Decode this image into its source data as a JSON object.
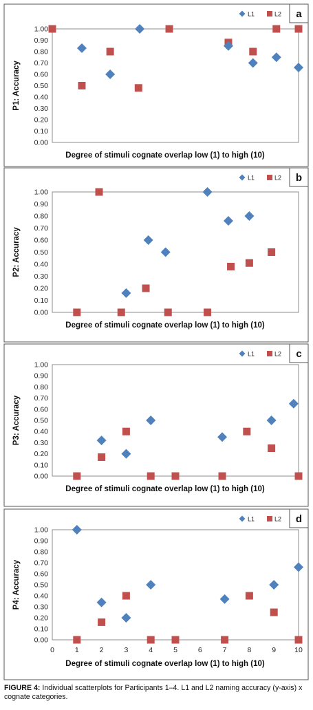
{
  "caption": {
    "label": "FIGURE 4:",
    "text": "Individual scatterplots for Participants 1–4. L1 and L2 naming accuracy (y-axis) x cognate categories."
  },
  "colors": {
    "L1": "#4f81bd",
    "L2": "#c0504d"
  },
  "chart_data": [
    {
      "type": "scatter",
      "panel": "a",
      "ylabel": "P1: Accuracy",
      "xlabel": "Degree of stimuli cognate overlap low (1) to high (10)",
      "xlim": [
        0,
        10
      ],
      "ylim": [
        0,
        1
      ],
      "yticks": [
        "0.00",
        "0.10",
        "0.20",
        "0.30",
        "0.40",
        "0.50",
        "0.60",
        "0.70",
        "0.80",
        "0.90",
        "1.00"
      ],
      "xticks": [],
      "legend": [
        "L1",
        "L2"
      ],
      "legend_position": "top-right",
      "series": [
        {
          "name": "L1",
          "marker": "diamond",
          "points": [
            [
              1.2,
              0.83
            ],
            [
              2.35,
              0.6
            ],
            [
              3.55,
              1.0
            ],
            [
              7.15,
              0.85
            ],
            [
              8.15,
              0.7
            ],
            [
              9.1,
              0.75
            ],
            [
              10.0,
              0.66
            ]
          ]
        },
        {
          "name": "L2",
          "marker": "square",
          "points": [
            [
              0,
              1.0
            ],
            [
              1.2,
              0.5
            ],
            [
              2.35,
              0.8
            ],
            [
              3.5,
              0.48
            ],
            [
              4.75,
              1.0
            ],
            [
              7.15,
              0.88
            ],
            [
              8.15,
              0.8
            ],
            [
              9.1,
              1.0
            ],
            [
              10.0,
              1.0
            ]
          ]
        }
      ]
    },
    {
      "type": "scatter",
      "panel": "b",
      "ylabel": "P2: Accuracy",
      "xlabel": "Degree of stimuli cognate overlap low (1) to high (10)",
      "xlim": [
        0,
        10
      ],
      "ylim": [
        0,
        1
      ],
      "yticks": [
        "0.00",
        "0.10",
        "0.20",
        "0.30",
        "0.40",
        "0.50",
        "0.60",
        "0.70",
        "0.80",
        "0.90",
        "1.00"
      ],
      "xticks": [],
      "legend": [
        "L1",
        "L2"
      ],
      "legend_position": "top-right",
      "series": [
        {
          "name": "L1",
          "marker": "diamond",
          "points": [
            [
              3.0,
              0.16
            ],
            [
              3.9,
              0.6
            ],
            [
              4.6,
              0.5
            ],
            [
              6.3,
              1.0
            ],
            [
              7.15,
              0.76
            ],
            [
              8.0,
              0.8
            ]
          ]
        },
        {
          "name": "L2",
          "marker": "square",
          "points": [
            [
              1.0,
              0.0
            ],
            [
              1.9,
              1.0
            ],
            [
              2.8,
              0.0
            ],
            [
              3.8,
              0.2
            ],
            [
              4.7,
              0.0
            ],
            [
              6.3,
              0.0
            ],
            [
              7.25,
              0.38
            ],
            [
              8.0,
              0.41
            ],
            [
              8.9,
              0.5
            ]
          ]
        }
      ]
    },
    {
      "type": "scatter",
      "panel": "c",
      "ylabel": "P3: Accuracy",
      "xlabel": "Degree of stimuli cognate overlap low (1) to high (10)",
      "xlim": [
        0,
        10
      ],
      "ylim": [
        0,
        1
      ],
      "yticks": [
        "0.00",
        "0.10",
        "0.20",
        "0.30",
        "0.40",
        "0.50",
        "0.60",
        "0.70",
        "0.80",
        "0.90",
        "1.00"
      ],
      "xticks": [],
      "legend": [
        "L1",
        "L2"
      ],
      "legend_position": "top-right",
      "series": [
        {
          "name": "L1",
          "marker": "diamond",
          "points": [
            [
              2.0,
              0.32
            ],
            [
              3.0,
              0.2
            ],
            [
              4.0,
              0.5
            ],
            [
              6.9,
              0.35
            ],
            [
              8.9,
              0.5
            ],
            [
              9.8,
              0.65
            ]
          ]
        },
        {
          "name": "L2",
          "marker": "square",
          "points": [
            [
              1.0,
              0.0
            ],
            [
              2.0,
              0.17
            ],
            [
              3.0,
              0.4
            ],
            [
              4.0,
              0.0
            ],
            [
              5.0,
              0.0
            ],
            [
              6.9,
              0.0
            ],
            [
              7.9,
              0.4
            ],
            [
              8.9,
              0.25
            ],
            [
              10.0,
              0.0
            ]
          ]
        }
      ]
    },
    {
      "type": "scatter",
      "panel": "d",
      "ylabel": "P4: Accuracy",
      "xlabel": "Degree of stimuli cognate overlap low (1) to high (10)",
      "xlim": [
        0,
        10
      ],
      "ylim": [
        0,
        1
      ],
      "yticks": [
        "0.00",
        "0.10",
        "0.20",
        "0.30",
        "0.40",
        "0.50",
        "0.60",
        "0.70",
        "0.80",
        "0.90",
        "1.00"
      ],
      "xticks": [
        "0",
        "1",
        "2",
        "3",
        "4",
        "5",
        "6",
        "7",
        "8",
        "9",
        "10"
      ],
      "legend": [
        "L1",
        "L2"
      ],
      "legend_position": "top-right",
      "series": [
        {
          "name": "L1",
          "marker": "diamond",
          "points": [
            [
              1,
              1.0
            ],
            [
              2,
              0.34
            ],
            [
              3,
              0.2
            ],
            [
              4,
              0.5
            ],
            [
              7,
              0.37
            ],
            [
              9,
              0.5
            ],
            [
              10,
              0.66
            ]
          ]
        },
        {
          "name": "L2",
          "marker": "square",
          "points": [
            [
              1,
              0.0
            ],
            [
              2,
              0.16
            ],
            [
              3,
              0.4
            ],
            [
              4,
              0.0
            ],
            [
              5,
              0.0
            ],
            [
              7,
              0.0
            ],
            [
              8,
              0.4
            ],
            [
              9,
              0.25
            ],
            [
              10,
              0.0
            ]
          ]
        }
      ]
    }
  ]
}
